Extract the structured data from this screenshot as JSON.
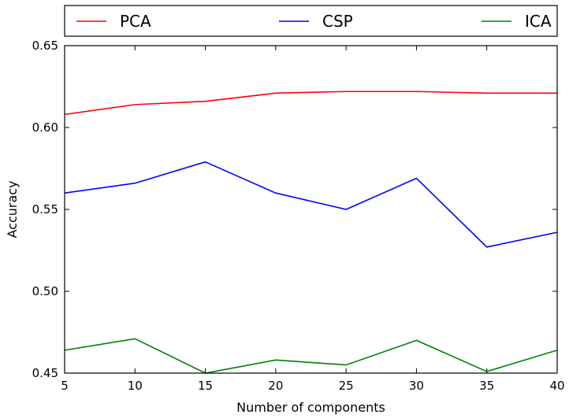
{
  "chart_data": {
    "type": "line",
    "title": "",
    "xlabel": "Number of components",
    "ylabel": "Accuracy",
    "x": [
      5,
      10,
      15,
      20,
      25,
      30,
      35,
      40
    ],
    "xlim": [
      5,
      40
    ],
    "ylim": [
      0.45,
      0.65
    ],
    "xticks": [
      "5",
      "10",
      "15",
      "20",
      "25",
      "30",
      "35",
      "40"
    ],
    "yticks": [
      "0.45",
      "0.50",
      "0.55",
      "0.60",
      "0.65"
    ],
    "grid": false,
    "legend_position": "top, outside plot, horizontal",
    "series": [
      {
        "name": "PCA",
        "color": "#ff0000",
        "values": [
          0.608,
          0.614,
          0.616,
          0.621,
          0.622,
          0.622,
          0.621,
          0.621
        ]
      },
      {
        "name": "CSP",
        "color": "#0000ff",
        "values": [
          0.56,
          0.566,
          0.579,
          0.56,
          0.55,
          0.569,
          0.527,
          0.536
        ]
      },
      {
        "name": "ICA",
        "color": "#008000",
        "values": [
          0.464,
          0.471,
          0.45,
          0.458,
          0.455,
          0.47,
          0.451,
          0.464
        ]
      }
    ]
  }
}
